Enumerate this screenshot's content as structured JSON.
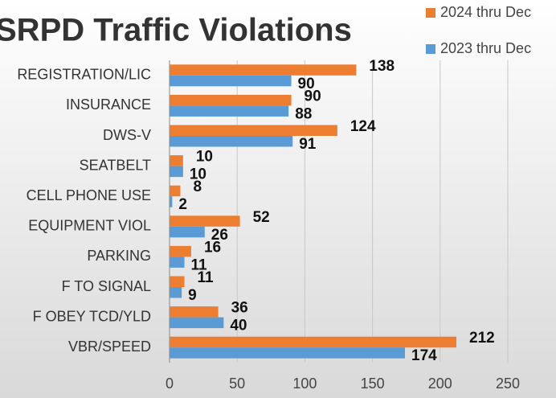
{
  "chart_data": {
    "type": "hbar",
    "title": "SRPD Traffic Violations",
    "categories": [
      "REGISTRATION/LIC",
      "INSURANCE",
      "DWS-V",
      "SEATBELT",
      "CELL PHONE USE",
      "EQUIPMENT VIOL",
      "PARKING",
      "F TO SIGNAL",
      "F OBEY TCD/YLD",
      "VBR/SPEED"
    ],
    "series": [
      {
        "name": "2024 thru Dec",
        "color": "#ed7d31",
        "values": [
          138,
          90,
          124,
          10,
          8,
          52,
          16,
          11,
          36,
          212
        ]
      },
      {
        "name": "2023 thru Dec",
        "color": "#5b9bd5",
        "values": [
          90,
          88,
          91,
          10,
          2,
          26,
          11,
          9,
          40,
          174
        ]
      }
    ],
    "xlim": [
      0,
      250
    ],
    "xticks": [
      0,
      50,
      100,
      150,
      200,
      250
    ],
    "grid": true,
    "legend": "top-right"
  }
}
